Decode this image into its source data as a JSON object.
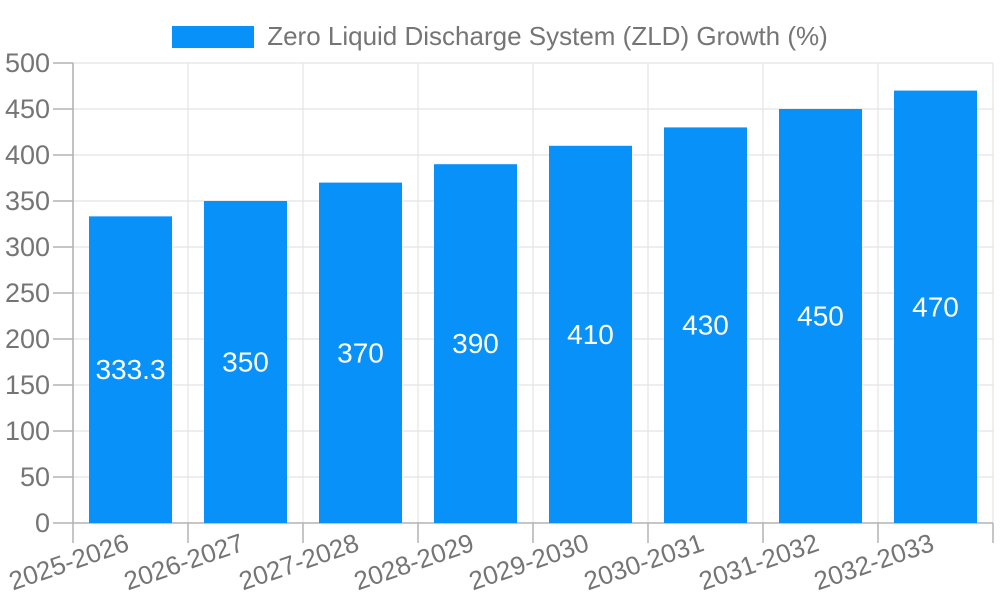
{
  "legend": {
    "items": [
      {
        "label": "Zero Liquid Discharge System (ZLD) Growth (%)",
        "color": "#0991fa"
      }
    ]
  },
  "chart_data": {
    "type": "bar",
    "title": "Zero Liquid Discharge System (ZLD) Growth (%)",
    "xlabel": "",
    "ylabel": "",
    "categories": [
      "2025-2026",
      "2026-2027",
      "2027-2028",
      "2028-2029",
      "2029-2030",
      "2030-2031",
      "2031-2032",
      "2032-2033"
    ],
    "series": [
      {
        "name": "Zero Liquid Discharge System (ZLD) Growth (%)",
        "color": "#0991fa",
        "values": [
          333.3,
          350,
          370,
          390,
          410,
          430,
          450,
          470
        ],
        "value_labels": [
          "333.3",
          "350",
          "370",
          "390",
          "410",
          "430",
          "450",
          "470"
        ]
      }
    ],
    "ylim": [
      0,
      500
    ],
    "ytick_step": 50,
    "ytick_labels": [
      "0",
      "50",
      "100",
      "150",
      "200",
      "250",
      "300",
      "350",
      "400",
      "450",
      "500"
    ],
    "grid": "both",
    "legend_position": "top-center",
    "x_label_rotation_deg": -19,
    "bar_labels_inside": true,
    "colors": {
      "bar": "#0991fa",
      "axis": "#b3b3b3",
      "grid": "#e4e4e4",
      "text": "#757575",
      "bar_label": "#ffffff",
      "background": "#ffffff"
    }
  }
}
